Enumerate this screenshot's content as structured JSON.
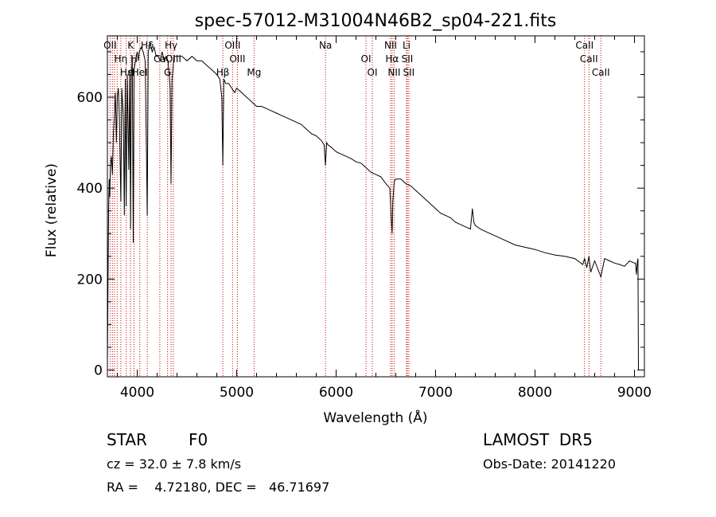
{
  "chart_data": {
    "type": "line",
    "title": "spec-57012-M31004N46B2_sp04-221.fits",
    "xlabel": "Wavelength (Å)",
    "ylabel": "Flux (relative)",
    "xlim": [
      3700,
      9100
    ],
    "ylim": [
      -15,
      735
    ],
    "x_ticks": [
      4000,
      5000,
      6000,
      7000,
      8000,
      9000
    ],
    "y_ticks": [
      0,
      200,
      400,
      600
    ],
    "grid": false,
    "series": [
      {
        "color": "#000000",
        "x": [
          3700,
          3706,
          3712,
          3718,
          3724,
          3730,
          3740,
          3750,
          3760,
          3770,
          3780,
          3790,
          3800,
          3810,
          3820,
          3835,
          3845,
          3860,
          3870,
          3880,
          3889,
          3900,
          3915,
          3925,
          3933,
          3940,
          3950,
          3960,
          3968,
          3975,
          3990,
          4000,
          4010,
          4020,
          4040,
          4060,
          4080,
          4095,
          4101,
          4110,
          4130,
          4150,
          4170,
          4190,
          4210,
          4230,
          4250,
          4270,
          4290,
          4310,
          4330,
          4340,
          4350,
          4370,
          4400,
          4450,
          4500,
          4550,
          4600,
          4650,
          4700,
          4750,
          4800,
          4830,
          4850,
          4861,
          4870,
          4890,
          4920,
          4950,
          4980,
          5000,
          5050,
          5100,
          5150,
          5200,
          5250,
          5300,
          5350,
          5400,
          5450,
          5500,
          5550,
          5600,
          5650,
          5700,
          5750,
          5800,
          5850,
          5880,
          5893,
          5905,
          5920,
          5950,
          6000,
          6050,
          6100,
          6150,
          6200,
          6250,
          6300,
          6350,
          6400,
          6450,
          6500,
          6540,
          6555,
          6563,
          6570,
          6585,
          6600,
          6650,
          6700,
          6750,
          6800,
          6850,
          6900,
          6950,
          7000,
          7050,
          7100,
          7150,
          7200,
          7250,
          7300,
          7350,
          7370,
          7385,
          7400,
          7450,
          7500,
          7600,
          7700,
          7800,
          7900,
          8000,
          8100,
          8200,
          8300,
          8400,
          8480,
          8498,
          8520,
          8542,
          8560,
          8600,
          8662,
          8700,
          8750,
          8800,
          8850,
          8900,
          8950,
          9000,
          9010,
          9020,
          9030,
          9035,
          9040
        ],
        "y": [
          10,
          200,
          350,
          420,
          380,
          450,
          470,
          430,
          520,
          560,
          610,
          500,
          600,
          620,
          560,
          370,
          620,
          560,
          340,
          640,
          360,
          650,
          440,
          660,
          310,
          640,
          690,
          280,
          660,
          670,
          690,
          700,
          680,
          700,
          710,
          700,
          680,
          440,
          340,
          700,
          720,
          700,
          710,
          690,
          690,
          680,
          700,
          680,
          690,
          680,
          620,
          410,
          640,
          690,
          690,
          690,
          680,
          690,
          680,
          680,
          670,
          660,
          650,
          640,
          600,
          450,
          640,
          630,
          630,
          620,
          610,
          620,
          610,
          600,
          590,
          580,
          580,
          575,
          570,
          565,
          560,
          555,
          550,
          545,
          540,
          530,
          520,
          515,
          505,
          495,
          450,
          500,
          495,
          490,
          480,
          475,
          470,
          465,
          458,
          455,
          445,
          435,
          430,
          425,
          410,
          400,
          330,
          300,
          370,
          415,
          420,
          420,
          410,
          405,
          395,
          385,
          375,
          365,
          355,
          345,
          340,
          335,
          325,
          320,
          315,
          310,
          355,
          325,
          318,
          310,
          305,
          295,
          285,
          275,
          270,
          265,
          258,
          253,
          250,
          245,
          232,
          245,
          225,
          250,
          215,
          240,
          205,
          245,
          240,
          235,
          232,
          228,
          240,
          235,
          235,
          210,
          240,
          245,
          0
        ]
      }
    ],
    "line_markers": [
      {
        "x": 3727,
        "label": "OII"
      },
      {
        "x": 3750,
        "label": ""
      },
      {
        "x": 3771,
        "label": ""
      },
      {
        "x": 3798,
        "label": ""
      },
      {
        "x": 3835,
        "label": "Hη"
      },
      {
        "x": 3889,
        "label": "Hε"
      },
      {
        "x": 3933,
        "label": "K"
      },
      {
        "x": 3968,
        "label": "H"
      },
      {
        "x": 4026,
        "label": "HeI"
      },
      {
        "x": 4101,
        "label": "Hδ"
      },
      {
        "x": 4227,
        "label": "Ca"
      },
      {
        "x": 4305,
        "label": "G"
      },
      {
        "x": 4340,
        "label": "Hγ"
      },
      {
        "x": 4363,
        "label": "OIII"
      },
      {
        "x": 4861,
        "label": "Hβ"
      },
      {
        "x": 4959,
        "label": "OIII"
      },
      {
        "x": 5007,
        "label": "OIII"
      },
      {
        "x": 5175,
        "label": "Mg"
      },
      {
        "x": 5893,
        "label": "Na"
      },
      {
        "x": 6300,
        "label": "OI"
      },
      {
        "x": 6364,
        "label": "OI"
      },
      {
        "x": 6548,
        "label": "NII"
      },
      {
        "x": 6563,
        "label": "Hα"
      },
      {
        "x": 6583,
        "label": "NII"
      },
      {
        "x": 6708,
        "label": "Li"
      },
      {
        "x": 6716,
        "label": "SII"
      },
      {
        "x": 6731,
        "label": "SII"
      },
      {
        "x": 8498,
        "label": "CaII"
      },
      {
        "x": 8542,
        "label": "CaII"
      },
      {
        "x": 8662,
        "label": "CaII"
      }
    ],
    "marker_color": "#cc0000"
  },
  "info": {
    "class_label": "STAR",
    "subclass": "F0",
    "survey": "LAMOST  DR5",
    "cz_line": "cz = 32.0 ± 7.8 km/s",
    "obs_date_line": "Obs-Date: 20141220",
    "radec_line": "RA =    4.72180, DEC =   46.71697"
  }
}
